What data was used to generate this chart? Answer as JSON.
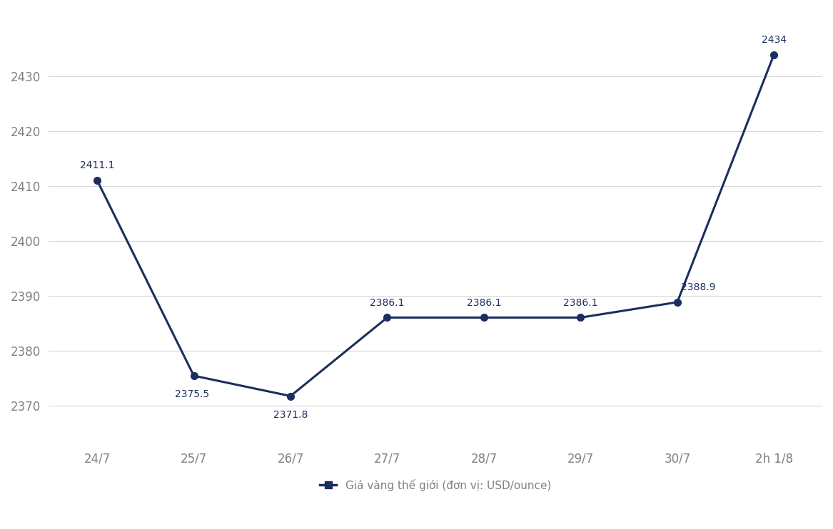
{
  "x_labels": [
    "24/7",
    "25/7",
    "26/7",
    "27/7",
    "28/7",
    "29/7",
    "30/7",
    "2h 1/8"
  ],
  "y_values": [
    2411.1,
    2375.5,
    2371.8,
    2386.1,
    2386.1,
    2386.1,
    2388.9,
    2434.0
  ],
  "y_ticks": [
    2370,
    2380,
    2390,
    2400,
    2410,
    2420,
    2430
  ],
  "ylim": [
    2363,
    2442
  ],
  "xlim_left": -0.5,
  "xlim_right": 7.5,
  "line_color": "#1b2f5e",
  "marker_color": "#1b2f5e",
  "background_color": "#ffffff",
  "grid_color": "#d8d8d8",
  "tick_label_color": "#808080",
  "legend_label": "Giá vàng thế giới (đơn vị: USD/ounce)",
  "data_labels": [
    "2411.1",
    "2375.5",
    "2371.8",
    "2386.1",
    "2386.1",
    "2386.1",
    "2388.9",
    "2434"
  ],
  "label_offsets_x": [
    0,
    -2,
    0,
    0,
    0,
    0,
    4,
    0
  ],
  "label_offsets_y": [
    10,
    -14,
    -14,
    10,
    10,
    10,
    10,
    10
  ],
  "label_ha": [
    "center",
    "center",
    "center",
    "center",
    "center",
    "center",
    "left",
    "center"
  ],
  "label_va": [
    "bottom",
    "top",
    "top",
    "bottom",
    "bottom",
    "bottom",
    "bottom",
    "bottom"
  ],
  "font_size_ticks": 12,
  "font_size_data_labels": 10,
  "font_size_legend": 11,
  "line_width": 2.2,
  "marker_size": 7
}
